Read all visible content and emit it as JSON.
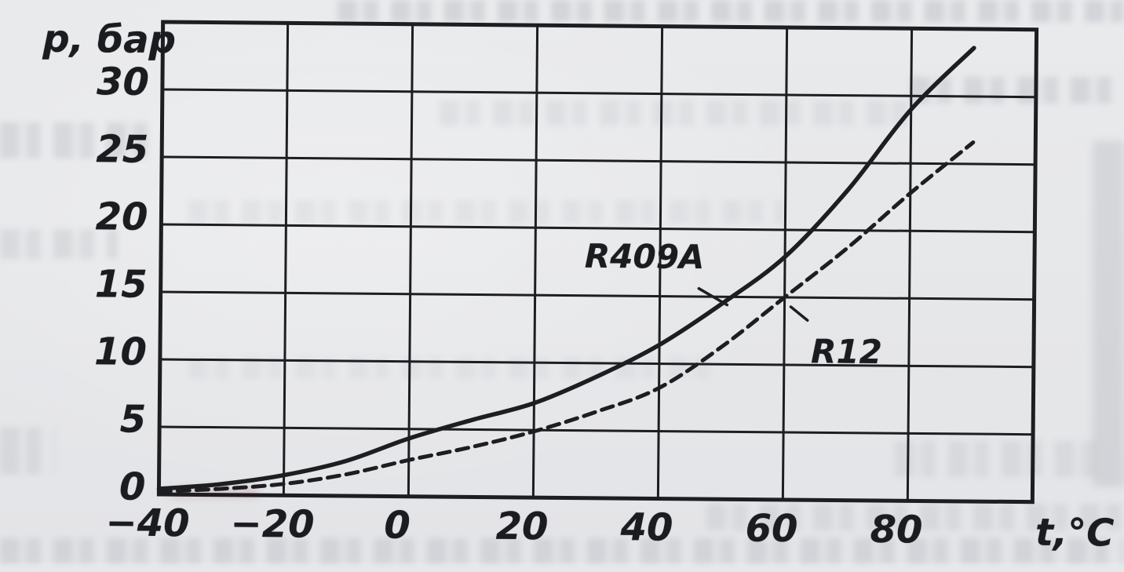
{
  "figure_title": "",
  "colors": {
    "ink": "#1d1e21",
    "paper": "#e7e8ea",
    "bleed": "#7d8390",
    "smudge_pink": "#c08090"
  },
  "chart_data": {
    "type": "line",
    "title": "",
    "xlabel": "t,°C",
    "ylabel": "p, бар",
    "xlim": [
      -40,
      100
    ],
    "ylim": [
      0,
      35
    ],
    "grid": true,
    "legend_position": "inline-annotations",
    "x_ticks": {
      "values": [
        -40,
        -20,
        0,
        20,
        40,
        60,
        80
      ],
      "labels": [
        "−40",
        "−20",
        "0",
        "20",
        "40",
        "60",
        "80"
      ]
    },
    "y_ticks": {
      "values": [
        30,
        25,
        20,
        15,
        10,
        5,
        0
      ],
      "labels": [
        "30",
        "25",
        "20",
        "15",
        "10",
        "5",
        "0"
      ]
    },
    "x": [
      -40,
      -30,
      -20,
      -10,
      0,
      10,
      20,
      30,
      40,
      50,
      60,
      70,
      80,
      90
    ],
    "series": [
      {
        "name": "R409A",
        "style": "solid",
        "values": [
          0.4,
          0.8,
          1.5,
          2.6,
          4.3,
          5.7,
          7.0,
          9.0,
          11.4,
          14.5,
          18.0,
          23.0,
          29.0,
          33.6
        ]
      },
      {
        "name": "R12",
        "style": "dashed",
        "values": [
          0.2,
          0.45,
          0.85,
          1.6,
          2.7,
          3.7,
          4.9,
          6.4,
          8.2,
          11.3,
          15.0,
          18.7,
          22.8,
          26.6
        ]
      }
    ],
    "annotations": [
      {
        "text": "R409A",
        "label_at": {
          "t": 37.5,
          "p": 17.9
        },
        "points_to": {
          "t": 50.8,
          "p": 14.4
        }
      },
      {
        "text": "R12",
        "label_at": {
          "t": 70.0,
          "p": 11.0
        },
        "points_to": {
          "t": 61.0,
          "p": 14.3
        }
      }
    ]
  }
}
